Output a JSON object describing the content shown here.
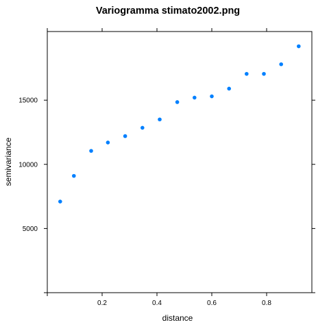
{
  "chart_data": {
    "type": "scatter",
    "title": "Variogramma stimato2002.png",
    "xlabel": "distance",
    "ylabel": "semivariance",
    "xlim": [
      0.0,
      0.965
    ],
    "ylim": [
      0,
      20350
    ],
    "x_ticks": [
      0.2,
      0.4,
      0.6,
      0.8
    ],
    "x_tick_labels": [
      "0.2",
      "0.4",
      "0.6",
      "0.8"
    ],
    "y_ticks": [
      5000,
      10000,
      15000
    ],
    "y_tick_labels": [
      "5000",
      "10000",
      "15000"
    ],
    "grid": false,
    "legend": "none",
    "point_color": "#0080ff",
    "points": [
      {
        "x": 0.047,
        "y": 7100
      },
      {
        "x": 0.097,
        "y": 9100
      },
      {
        "x": 0.16,
        "y": 11050
      },
      {
        "x": 0.221,
        "y": 11700
      },
      {
        "x": 0.284,
        "y": 12200
      },
      {
        "x": 0.347,
        "y": 12850
      },
      {
        "x": 0.41,
        "y": 13500
      },
      {
        "x": 0.474,
        "y": 14850
      },
      {
        "x": 0.537,
        "y": 15200
      },
      {
        "x": 0.6,
        "y": 15300
      },
      {
        "x": 0.663,
        "y": 15900
      },
      {
        "x": 0.727,
        "y": 17050
      },
      {
        "x": 0.79,
        "y": 17050
      },
      {
        "x": 0.853,
        "y": 17800
      },
      {
        "x": 0.917,
        "y": 19200
      }
    ]
  }
}
